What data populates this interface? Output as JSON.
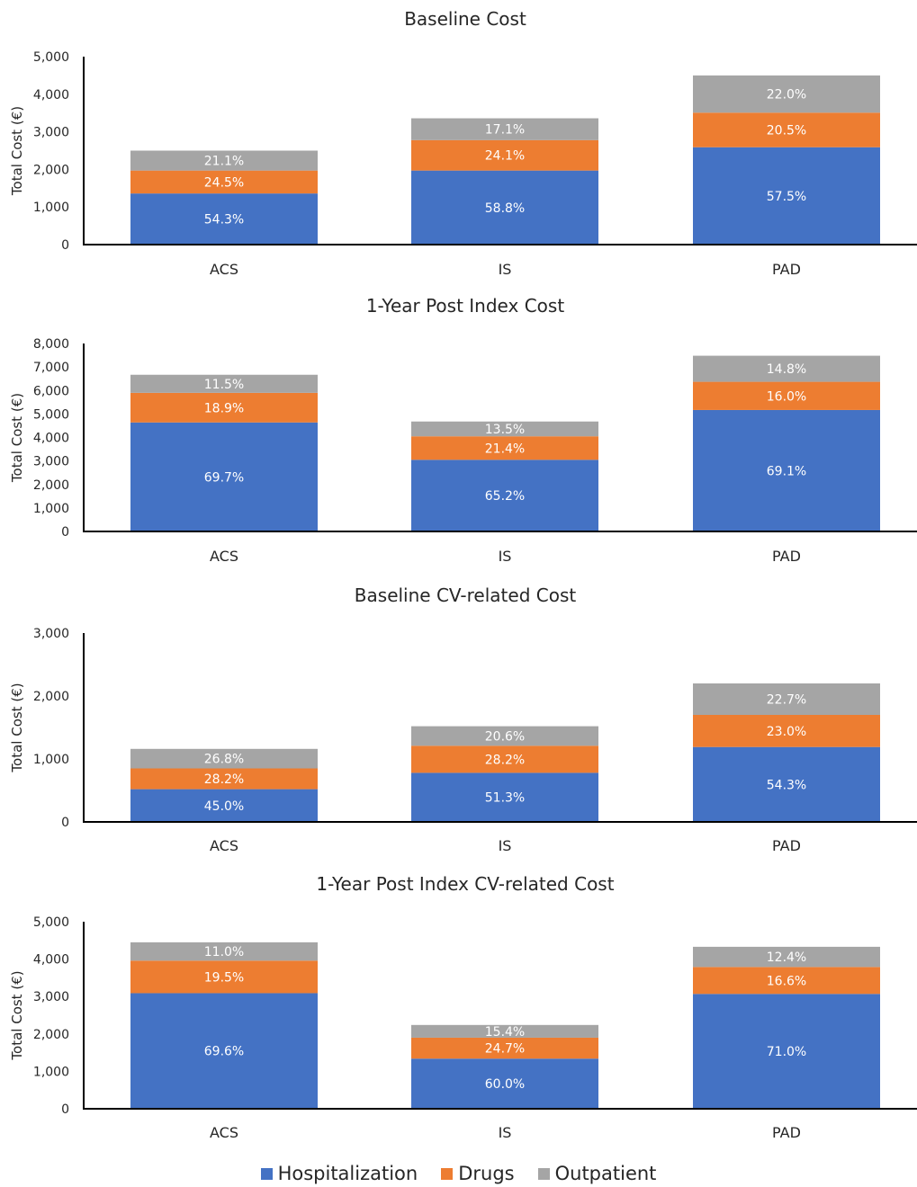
{
  "colors": {
    "Hospitalization": "#4472C4",
    "Drugs": "#ED7D31",
    "Outpatient": "#A5A5A5"
  },
  "legend": {
    "items": [
      {
        "name": "Hospitalization",
        "color": "#4472C4"
      },
      {
        "name": "Drugs",
        "color": "#ED7D31"
      },
      {
        "name": "Outpatient",
        "color": "#A5A5A5"
      }
    ]
  },
  "chart_data": [
    {
      "type": "bar",
      "stacked": true,
      "title": "Baseline Cost",
      "ylabel": "Total Cost  (€)",
      "ylim": [
        0,
        5000
      ],
      "yticks": [
        0,
        1000,
        2000,
        3000,
        4000,
        5000
      ],
      "ytick_labels": [
        "0",
        "1,000",
        "2,000",
        "3,000",
        "4,000",
        "5,000"
      ],
      "categories": [
        "ACS",
        "IS",
        "PAD"
      ],
      "series": [
        {
          "name": "Hospitalization",
          "values": [
            1360,
            1970,
            2590
          ],
          "labels": [
            "54.3%",
            "58.8%",
            "57.5%"
          ]
        },
        {
          "name": "Drugs",
          "values": [
            610,
            810,
            920
          ],
          "labels": [
            "24.5%",
            "24.1%",
            "20.5%"
          ]
        },
        {
          "name": "Outpatient",
          "values": [
            530,
            580,
            990
          ],
          "labels": [
            "21.1%",
            "17.1%",
            "22.0%"
          ]
        }
      ]
    },
    {
      "type": "bar",
      "stacked": true,
      "title": "1-Year Post Index Cost",
      "ylabel": "Total Cost (€)",
      "ylim": [
        0,
        8000
      ],
      "yticks": [
        0,
        1000,
        2000,
        3000,
        4000,
        5000,
        6000,
        7000,
        8000
      ],
      "ytick_labels": [
        "0",
        "1,000",
        "2,000",
        "3,000",
        "4,000",
        "5,000",
        "6,000",
        "7,000",
        "8,000"
      ],
      "categories": [
        "ACS",
        "IS",
        "PAD"
      ],
      "series": [
        {
          "name": "Hospitalization",
          "values": [
            4640,
            3050,
            5170
          ],
          "labels": [
            "69.7%",
            "65.2%",
            "69.1%"
          ]
        },
        {
          "name": "Drugs",
          "values": [
            1260,
            1000,
            1200
          ],
          "labels": [
            "18.9%",
            "21.4%",
            "16.0%"
          ]
        },
        {
          "name": "Outpatient",
          "values": [
            770,
            630,
            1110
          ],
          "labels": [
            "11.5%",
            "13.5%",
            "14.8%"
          ]
        }
      ]
    },
    {
      "type": "bar",
      "stacked": true,
      "title": "Baseline CV-related Cost",
      "ylabel": "Total Cost  (€)",
      "ylim": [
        0,
        3000
      ],
      "yticks": [
        0,
        1000,
        2000,
        3000
      ],
      "ytick_labels": [
        "0",
        "1,000",
        "2,000",
        "3,000"
      ],
      "categories": [
        "ACS",
        "IS",
        "PAD"
      ],
      "series": [
        {
          "name": "Hospitalization",
          "values": [
            520,
            780,
            1190
          ],
          "labels": [
            "45.0%",
            "51.3%",
            "54.3%"
          ]
        },
        {
          "name": "Drugs",
          "values": [
            330,
            430,
            510
          ],
          "labels": [
            "28.2%",
            "28.2%",
            "23.0%"
          ]
        },
        {
          "name": "Outpatient",
          "values": [
            310,
            310,
            500
          ],
          "labels": [
            "26.8%",
            "20.6%",
            "22.7%"
          ]
        }
      ]
    },
    {
      "type": "bar",
      "stacked": true,
      "title": "1-Year Post Index CV-related Cost",
      "ylabel": "Total Cost (€)",
      "ylim": [
        0,
        5000
      ],
      "yticks": [
        0,
        1000,
        2000,
        3000,
        4000,
        5000
      ],
      "ytick_labels": [
        "0",
        "1,000",
        "2,000",
        "3,000",
        "4,000",
        "5,000"
      ],
      "categories": [
        "ACS",
        "IS",
        "PAD"
      ],
      "series": [
        {
          "name": "Hospitalization",
          "values": [
            3090,
            1340,
            3070
          ],
          "labels": [
            "69.6%",
            "60.0%",
            "71.0%"
          ]
        },
        {
          "name": "Drugs",
          "values": [
            870,
            560,
            720
          ],
          "labels": [
            "19.5%",
            "24.7%",
            "16.6%"
          ]
        },
        {
          "name": "Outpatient",
          "values": [
            490,
            340,
            540
          ],
          "labels": [
            "11.0%",
            "15.4%",
            "12.4%"
          ]
        }
      ]
    }
  ]
}
